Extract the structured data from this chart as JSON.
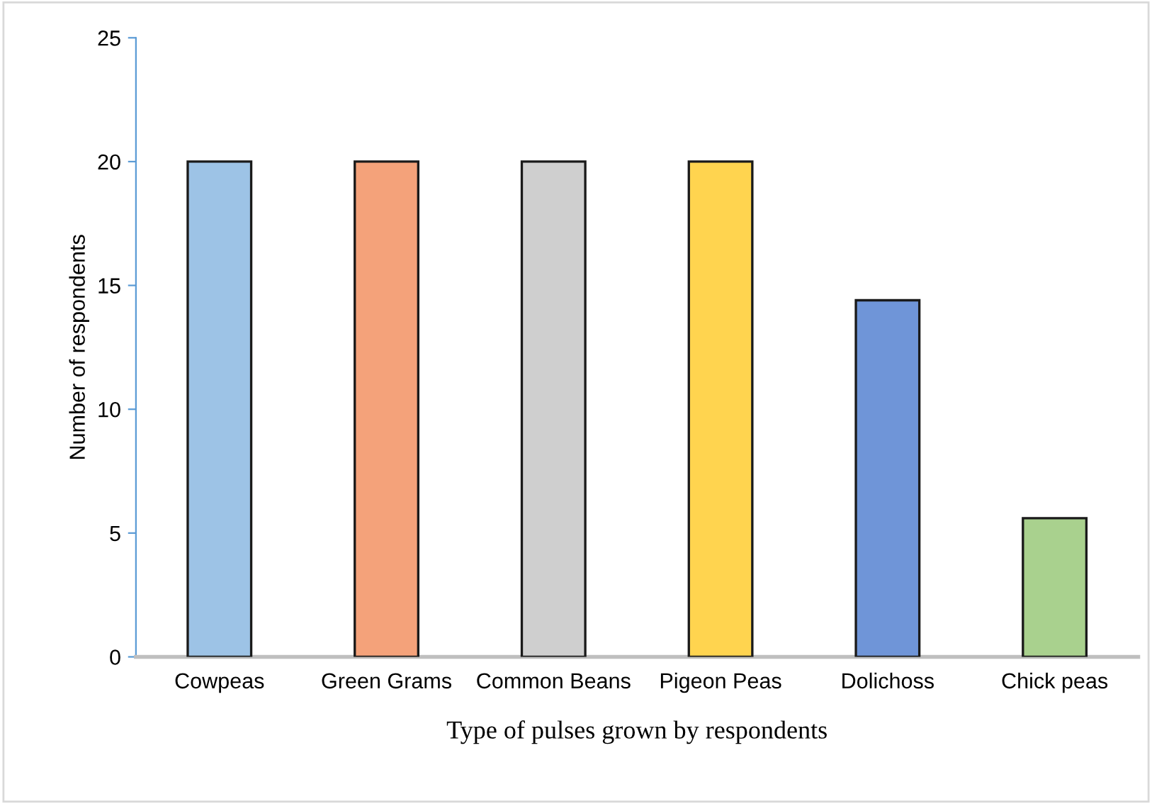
{
  "chart_data": {
    "type": "bar",
    "xlabel": "Type of pulses grown by respondents",
    "ylabel": "Number of respondents",
    "categories": [
      "Cowpeas",
      "Green Grams",
      "Common Beans",
      "Pigeon Peas",
      "Dolichoss",
      "Chick peas"
    ],
    "values": [
      20,
      20,
      20,
      20,
      14.4,
      5.6
    ],
    "colors": [
      "#9dc3e6",
      "#f4a27a",
      "#cfcfcf",
      "#ffd44f",
      "#6f95d8",
      "#a9d18e"
    ],
    "ylim": [
      0,
      25
    ],
    "yticks": [
      0,
      5,
      10,
      15,
      20,
      25
    ],
    "grid": false
  }
}
